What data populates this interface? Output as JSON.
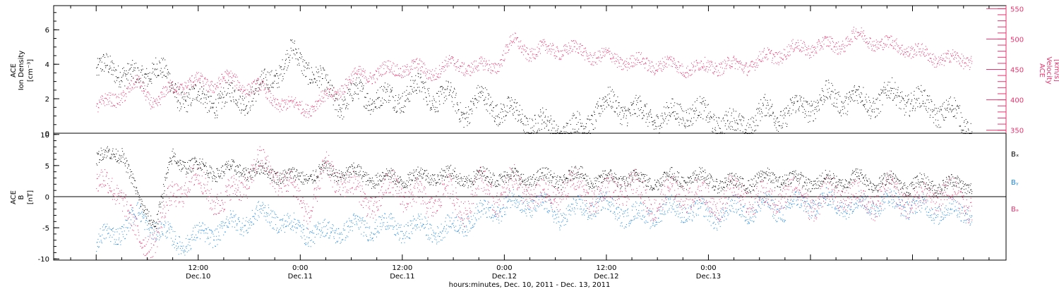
{
  "chart_data": [
    {
      "type": "scatter",
      "panel": "top",
      "left_axis": {
        "label_line1": "ACE",
        "label_line2": "Ion Density",
        "unit": "[cm⁻³]",
        "ylim": [
          0,
          7.4
        ],
        "ticks": [
          0,
          2,
          4,
          6
        ]
      },
      "right_axis": {
        "label_line1": "ACE",
        "label_line2": "Velocity",
        "unit": "[km/s]",
        "ylim": [
          345,
          555
        ],
        "ticks": [
          350,
          400,
          450,
          500,
          550
        ],
        "color": "#e8336e"
      },
      "series": [
        {
          "axis": "left",
          "color": "#000000",
          "t": [
            0,
            3,
            5,
            7,
            9,
            11,
            13,
            15,
            17,
            19,
            21,
            23,
            25,
            27,
            29,
            31,
            33,
            35,
            37,
            39,
            41,
            43,
            45,
            47,
            49,
            51,
            53,
            55,
            57,
            59,
            61,
            63,
            65,
            67,
            69,
            71,
            73,
            75,
            77,
            79,
            81,
            83,
            85,
            87,
            89,
            91,
            93,
            95,
            97,
            99,
            101,
            103
          ],
          "y": [
            3.6,
            3.8,
            2.9,
            4.2,
            2.4,
            2.1,
            1.9,
            2.0,
            2.1,
            2.3,
            3.5,
            4.5,
            3.9,
            2.5,
            1.8,
            2.3,
            2.1,
            1.9,
            2.6,
            2.3,
            2.2,
            1.3,
            1.9,
            1.6,
            1.1,
            0.7,
            0.4,
            0.2,
            0.3,
            1.4,
            1.8,
            1.2,
            1.1,
            0.8,
            1.4,
            1.1,
            0.8,
            0.4,
            0.7,
            1.3,
            1.1,
            1.5,
            1.9,
            2.1,
            2.0,
            1.8,
            2.2,
            2.1,
            1.7,
            1.4,
            1.1,
            0.3
          ]
        },
        {
          "axis": "right",
          "color": "#e8336e",
          "t": [
            0,
            3,
            5,
            7,
            9,
            11,
            13,
            15,
            17,
            19,
            21,
            23,
            25,
            27,
            29,
            31,
            33,
            35,
            37,
            39,
            41,
            43,
            45,
            47,
            49,
            51,
            53,
            55,
            57,
            59,
            61,
            63,
            65,
            67,
            69,
            71,
            73,
            75,
            77,
            79,
            81,
            83,
            85,
            87,
            89,
            91,
            93,
            95,
            97,
            99,
            101,
            103
          ],
          "y": [
            385,
            410,
            425,
            395,
            420,
            430,
            425,
            435,
            425,
            420,
            400,
            388,
            390,
            400,
            425,
            440,
            445,
            450,
            455,
            445,
            455,
            458,
            452,
            458,
            495,
            480,
            482,
            485,
            480,
            472,
            468,
            462,
            460,
            458,
            455,
            452,
            458,
            455,
            460,
            470,
            480,
            485,
            490,
            488,
            505,
            500,
            490,
            488,
            475,
            470,
            465,
            468
          ]
        }
      ]
    },
    {
      "type": "scatter",
      "panel": "bottom",
      "left_axis": {
        "label_line1": "ACE",
        "label_line2": "B",
        "unit": "[nT]",
        "ylim": [
          -10.2,
          10.2
        ],
        "ticks": [
          -10,
          -5,
          0,
          5,
          10
        ]
      },
      "legend": [
        {
          "name": "Bₓ",
          "color": "#000000"
        },
        {
          "name": "Bᵧ",
          "color": "#1a87e6"
        },
        {
          "name": "Bₔ",
          "color": "#e8336e"
        }
      ],
      "series": [
        {
          "name": "Bₓ",
          "color": "#000000",
          "t": [
            0,
            3,
            5,
            7,
            9,
            11,
            13,
            15,
            17,
            19,
            21,
            23,
            25,
            27,
            29,
            31,
            33,
            35,
            37,
            39,
            41,
            43,
            45,
            47,
            49,
            51,
            53,
            55,
            57,
            59,
            61,
            63,
            65,
            67,
            69,
            71,
            73,
            75,
            77,
            79,
            81,
            83,
            85,
            87,
            89,
            91,
            93,
            95,
            97,
            99,
            101,
            103
          ],
          "y": [
            6,
            7.5,
            -1,
            -4,
            6.5,
            5,
            4.5,
            4,
            4.5,
            4,
            4,
            3,
            3.5,
            4,
            4,
            3.5,
            3,
            3,
            3,
            3.5,
            3.5,
            3,
            3,
            3.5,
            3,
            3,
            3,
            3,
            3.5,
            2.5,
            3,
            3,
            2.5,
            3,
            3,
            3,
            2.5,
            2,
            2.5,
            3,
            3,
            2.5,
            2.5,
            2.5,
            3,
            2.5,
            2.5,
            2,
            2,
            2,
            2,
            2
          ]
        },
        {
          "name": "Bᵧ",
          "color": "#1a87e6",
          "t": [
            0,
            3,
            5,
            7,
            9,
            11,
            13,
            15,
            17,
            19,
            21,
            23,
            25,
            27,
            29,
            31,
            33,
            35,
            37,
            39,
            41,
            43,
            45,
            47,
            49,
            51,
            53,
            55,
            57,
            59,
            61,
            63,
            65,
            67,
            69,
            71,
            73,
            75,
            77,
            79,
            81,
            83,
            85,
            87,
            89,
            91,
            93,
            95,
            97,
            99,
            101,
            103
          ],
          "y": [
            -7.5,
            -5,
            -3,
            -5,
            -7,
            -7,
            -6,
            -5,
            -4,
            -3,
            -3,
            -5,
            -5.5,
            -6,
            -5,
            -5,
            -4.5,
            -5,
            -5,
            -5,
            -5.5,
            -4,
            -3,
            -2,
            -1,
            -1,
            -2,
            -3,
            -2,
            -1,
            -2,
            -3,
            -3,
            -2,
            -2,
            -2.5,
            -3,
            -2,
            -2,
            -1.5,
            -2,
            -1,
            -1,
            -1,
            -1.5,
            -1,
            -1,
            -1,
            -2,
            -2,
            -2.5,
            -2
          ]
        },
        {
          "name": "Bₔ",
          "color": "#e8336e",
          "t": [
            0,
            3,
            5,
            7,
            9,
            11,
            13,
            15,
            17,
            19,
            21,
            23,
            25,
            27,
            29,
            31,
            33,
            35,
            37,
            39,
            41,
            43,
            45,
            47,
            49,
            51,
            53,
            55,
            57,
            59,
            61,
            63,
            65,
            67,
            69,
            71,
            73,
            75,
            77,
            79,
            81,
            83,
            85,
            87,
            89,
            91,
            93,
            95,
            97,
            99,
            101,
            103
          ],
          "y": [
            2,
            1,
            -8,
            -6,
            0,
            3,
            1,
            -1,
            2,
            5,
            4,
            1,
            -2,
            4,
            3,
            0,
            -1,
            2,
            0,
            -1,
            1,
            -2,
            2,
            0,
            2,
            1,
            -1,
            2,
            1,
            0,
            1,
            2,
            -1,
            0,
            1,
            0,
            -1,
            1,
            0,
            -1,
            1,
            0,
            -1,
            1,
            0,
            -1,
            1,
            0,
            -1,
            1,
            0,
            -1
          ]
        }
      ]
    }
  ],
  "x_axis": {
    "tick_labels": [
      {
        "time": "12:00",
        "date": "Dec.10",
        "t": 12
      },
      {
        "time": "0:00",
        "date": "Dec.11",
        "t": 24
      },
      {
        "time": "12:00",
        "date": "Dec.11",
        "t": 36
      },
      {
        "time": "0:00",
        "date": "Dec.12",
        "t": 48
      },
      {
        "time": "12:00",
        "date": "Dec.12",
        "t": 60
      },
      {
        "time": "0:00",
        "date": "Dec.13",
        "t": 72
      }
    ],
    "xlim_hours": [
      -5,
      107
    ],
    "label": "hours:minutes, Dec. 10, 2011 - Dec. 13, 2011"
  }
}
